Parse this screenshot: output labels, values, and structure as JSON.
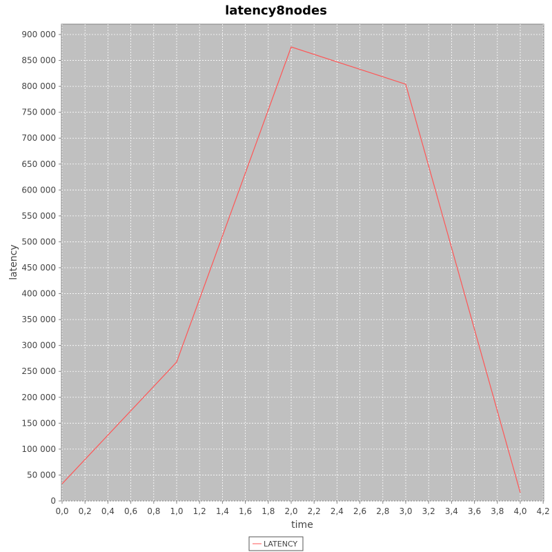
{
  "chart_data": {
    "type": "line",
    "title": "latency8nodes",
    "xlabel": "time",
    "ylabel": "latency",
    "xlim": [
      0,
      4.2
    ],
    "ylim": [
      0,
      920000
    ],
    "x_ticks": [
      "0,0",
      "0,2",
      "0,4",
      "0,6",
      "0,8",
      "1,0",
      "1,2",
      "1,4",
      "1,6",
      "1,8",
      "2,0",
      "2,2",
      "2,4",
      "2,6",
      "2,8",
      "3,0",
      "3,2",
      "3,4",
      "3,6",
      "3,8",
      "4,0",
      "4,2"
    ],
    "y_ticks": [
      "0",
      "50 000",
      "100 000",
      "150 000",
      "200 000",
      "250 000",
      "300 000",
      "350 000",
      "400 000",
      "450 000",
      "500 000",
      "550 000",
      "600 000",
      "650 000",
      "700 000",
      "750 000",
      "800 000",
      "850 000",
      "900 000"
    ],
    "grid": true,
    "legend_position": "bottom",
    "series": [
      {
        "name": "LATENCY",
        "color": "#ff5555",
        "x": [
          0,
          1,
          2,
          3,
          4
        ],
        "y": [
          33000,
          268000,
          876000,
          804000,
          16000
        ]
      }
    ],
    "colors": {
      "plot_background": "#c0c0c0",
      "grid": "#ffffff"
    }
  }
}
